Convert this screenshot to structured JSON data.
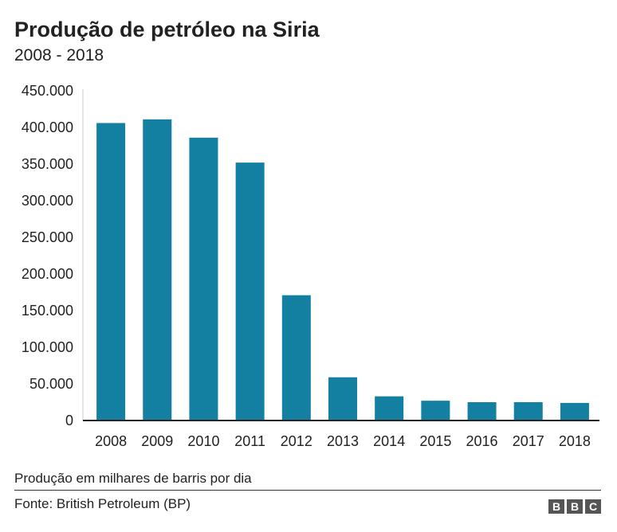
{
  "chart_data": {
    "type": "bar",
    "title": "Produção de petróleo na Siria",
    "subtitle": "2008 - 2018",
    "categories": [
      "2008",
      "2009",
      "2010",
      "2011",
      "2012",
      "2013",
      "2014",
      "2015",
      "2016",
      "2017",
      "2018"
    ],
    "values": [
      406000,
      411000,
      386000,
      352000,
      171000,
      59000,
      33000,
      27000,
      25000,
      25000,
      24000
    ],
    "yticks": [
      "0",
      "50.000",
      "100.000",
      "150.000",
      "200.000",
      "250.000",
      "300.000",
      "350.000",
      "400.000",
      "450.000"
    ],
    "ylim": [
      0,
      450000
    ],
    "xlabel": "",
    "ylabel": "",
    "grid": false,
    "bar_color": "#1380A1",
    "note": "Produção em milhares de barris por dia",
    "source": "Fonte: British Petroleum (BP)"
  },
  "logo": "BBC"
}
